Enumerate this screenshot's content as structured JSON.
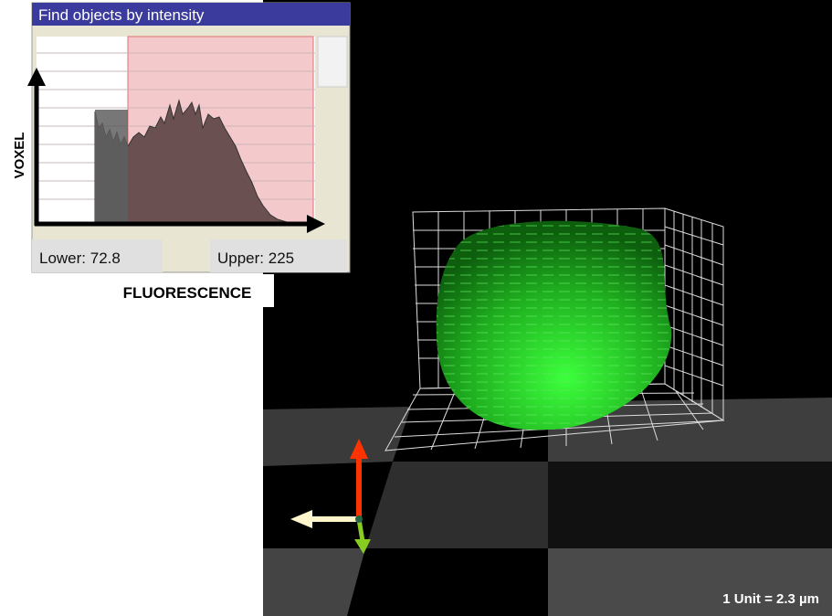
{
  "panel": {
    "title": "Find objects by intensity",
    "y_axis_label": "VOXEL",
    "x_axis_label": "FLUORESCENCE",
    "lower": "Lower: 72.8",
    "upper": "Upper: 225"
  },
  "viewer": {
    "scale_label": "1 Unit = 2.3 µm"
  }
}
